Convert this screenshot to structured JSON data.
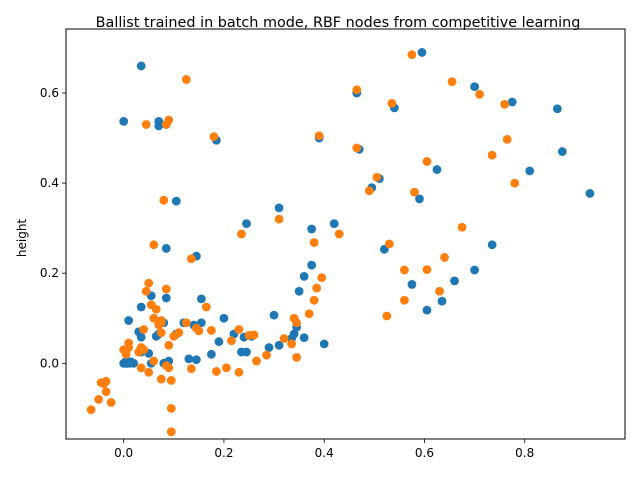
{
  "chart_data": {
    "type": "scatter",
    "title": "Ballist trained in batch mode, RBF nodes from competitive learning",
    "xlabel": "",
    "ylabel": "height",
    "xlim": [
      -0.115,
      1.0
    ],
    "ylim": [
      -0.168,
      0.742
    ],
    "xticks": [
      0.0,
      0.2,
      0.4,
      0.6,
      0.8
    ],
    "xtick_labels": [
      "0.0",
      "0.2",
      "0.4",
      "0.6",
      "0.8"
    ],
    "yticks": [
      0.0,
      0.2,
      0.4,
      0.6
    ],
    "ytick_labels": [
      "0.0",
      "0.2",
      "0.4",
      "0.6"
    ],
    "grid": false,
    "legend": false,
    "series": [
      {
        "color": "#1f77b4",
        "points": [
          [
            0.0,
            0.0
          ],
          [
            0.003,
            0.003
          ],
          [
            0.006,
            0.0
          ],
          [
            0.01,
            0.003
          ],
          [
            0.015,
            0.003
          ],
          [
            0.02,
            0.0
          ],
          [
            0.005,
            0.0
          ],
          [
            0.012,
            0.0
          ],
          [
            0.0,
            0.537
          ],
          [
            0.035,
            0.66
          ],
          [
            0.07,
            0.537
          ],
          [
            0.07,
            0.527
          ],
          [
            0.085,
            0.53
          ],
          [
            0.185,
            0.495
          ],
          [
            0.105,
            0.36
          ],
          [
            0.01,
            0.095
          ],
          [
            0.035,
            0.125
          ],
          [
            0.055,
            0.15
          ],
          [
            0.085,
            0.145
          ],
          [
            0.03,
            0.07
          ],
          [
            0.035,
            0.058
          ],
          [
            0.065,
            0.06
          ],
          [
            0.07,
            0.065
          ],
          [
            0.08,
            0.09
          ],
          [
            0.035,
            0.025
          ],
          [
            0.05,
            0.022
          ],
          [
            0.055,
            0.0
          ],
          [
            0.08,
            0.0
          ],
          [
            0.09,
            0.005
          ],
          [
            0.085,
            0.255
          ],
          [
            0.145,
            0.238
          ],
          [
            0.155,
            0.143
          ],
          [
            0.155,
            0.09
          ],
          [
            0.12,
            0.09
          ],
          [
            0.14,
            0.085
          ],
          [
            0.105,
            0.065
          ],
          [
            0.13,
            0.01
          ],
          [
            0.145,
            0.008
          ],
          [
            0.175,
            0.02
          ],
          [
            0.19,
            0.048
          ],
          [
            0.2,
            0.1
          ],
          [
            0.22,
            0.065
          ],
          [
            0.235,
            0.025
          ],
          [
            0.245,
            0.025
          ],
          [
            0.245,
            0.31
          ],
          [
            0.24,
            0.058
          ],
          [
            0.255,
            0.06
          ],
          [
            0.29,
            0.035
          ],
          [
            0.3,
            0.107
          ],
          [
            0.31,
            0.345
          ],
          [
            0.31,
            0.04
          ],
          [
            0.335,
            0.055
          ],
          [
            0.34,
            0.065
          ],
          [
            0.345,
            0.08
          ],
          [
            0.35,
            0.16
          ],
          [
            0.36,
            0.057
          ],
          [
            0.36,
            0.193
          ],
          [
            0.375,
            0.218
          ],
          [
            0.375,
            0.298
          ],
          [
            0.39,
            0.5
          ],
          [
            0.4,
            0.043
          ],
          [
            0.42,
            0.31
          ],
          [
            0.465,
            0.6
          ],
          [
            0.47,
            0.475
          ],
          [
            0.495,
            0.39
          ],
          [
            0.51,
            0.41
          ],
          [
            0.52,
            0.253
          ],
          [
            0.54,
            0.567
          ],
          [
            0.575,
            0.175
          ],
          [
            0.59,
            0.365
          ],
          [
            0.595,
            0.69
          ],
          [
            0.605,
            0.118
          ],
          [
            0.625,
            0.43
          ],
          [
            0.635,
            0.138
          ],
          [
            0.66,
            0.183
          ],
          [
            0.7,
            0.207
          ],
          [
            0.7,
            0.614
          ],
          [
            0.735,
            0.263
          ],
          [
            0.775,
            0.58
          ],
          [
            0.81,
            0.427
          ],
          [
            0.865,
            0.565
          ],
          [
            0.875,
            0.47
          ],
          [
            0.93,
            0.377
          ]
        ]
      },
      {
        "color": "#ff7f0e",
        "points": [
          [
            -0.065,
            -0.103
          ],
          [
            -0.05,
            -0.08
          ],
          [
            -0.045,
            -0.043
          ],
          [
            -0.04,
            -0.045
          ],
          [
            -0.035,
            -0.04
          ],
          [
            -0.035,
            -0.063
          ],
          [
            -0.025,
            -0.087
          ],
          [
            0.0,
            0.03
          ],
          [
            0.005,
            0.02
          ],
          [
            0.01,
            0.035
          ],
          [
            0.01,
            0.045
          ],
          [
            0.03,
            0.025
          ],
          [
            0.035,
            0.035
          ],
          [
            0.04,
            0.03
          ],
          [
            0.04,
            0.075
          ],
          [
            0.045,
            0.16
          ],
          [
            0.05,
            0.178
          ],
          [
            0.055,
            0.13
          ],
          [
            0.06,
            0.1
          ],
          [
            0.06,
            0.263
          ],
          [
            0.065,
            0.12
          ],
          [
            0.07,
            0.085
          ],
          [
            0.075,
            0.09
          ],
          [
            0.075,
            0.095
          ],
          [
            0.075,
            0.068
          ],
          [
            0.08,
            0.362
          ],
          [
            0.085,
            0.165
          ],
          [
            0.035,
            -0.01
          ],
          [
            0.05,
            -0.02
          ],
          [
            0.06,
            0.005
          ],
          [
            0.075,
            -0.035
          ],
          [
            0.085,
            -0.005
          ],
          [
            0.09,
            -0.01
          ],
          [
            0.095,
            -0.038
          ],
          [
            0.095,
            -0.1
          ],
          [
            0.095,
            -0.152
          ],
          [
            0.09,
            0.04
          ],
          [
            0.1,
            0.06
          ],
          [
            0.11,
            0.068
          ],
          [
            0.045,
            0.53
          ],
          [
            0.085,
            0.53
          ],
          [
            0.09,
            0.54
          ],
          [
            0.125,
            0.63
          ],
          [
            0.135,
            0.232
          ],
          [
            0.125,
            0.09
          ],
          [
            0.145,
            0.078
          ],
          [
            0.15,
            0.072
          ],
          [
            0.135,
            -0.012
          ],
          [
            0.165,
            0.125
          ],
          [
            0.175,
            0.073
          ],
          [
            0.18,
            0.503
          ],
          [
            0.185,
            -0.018
          ],
          [
            0.205,
            -0.01
          ],
          [
            0.215,
            0.05
          ],
          [
            0.23,
            -0.02
          ],
          [
            0.23,
            0.075
          ],
          [
            0.235,
            0.287
          ],
          [
            0.25,
            0.062
          ],
          [
            0.26,
            0.063
          ],
          [
            0.265,
            0.005
          ],
          [
            0.285,
            0.018
          ],
          [
            0.31,
            0.32
          ],
          [
            0.32,
            0.055
          ],
          [
            0.335,
            0.043
          ],
          [
            0.34,
            0.1
          ],
          [
            0.345,
            0.013
          ],
          [
            0.345,
            0.09
          ],
          [
            0.37,
            0.11
          ],
          [
            0.38,
            0.14
          ],
          [
            0.38,
            0.268
          ],
          [
            0.385,
            0.167
          ],
          [
            0.39,
            0.505
          ],
          [
            0.395,
            0.19
          ],
          [
            0.43,
            0.287
          ],
          [
            0.465,
            0.478
          ],
          [
            0.465,
            0.607
          ],
          [
            0.49,
            0.383
          ],
          [
            0.505,
            0.413
          ],
          [
            0.525,
            0.105
          ],
          [
            0.53,
            0.265
          ],
          [
            0.535,
            0.577
          ],
          [
            0.56,
            0.207
          ],
          [
            0.56,
            0.14
          ],
          [
            0.575,
            0.685
          ],
          [
            0.58,
            0.38
          ],
          [
            0.605,
            0.208
          ],
          [
            0.605,
            0.448
          ],
          [
            0.63,
            0.16
          ],
          [
            0.64,
            0.235
          ],
          [
            0.655,
            0.625
          ],
          [
            0.675,
            0.302
          ],
          [
            0.71,
            0.597
          ],
          [
            0.735,
            0.462
          ],
          [
            0.76,
            0.575
          ],
          [
            0.765,
            0.497
          ],
          [
            0.78,
            0.4
          ]
        ]
      }
    ]
  }
}
